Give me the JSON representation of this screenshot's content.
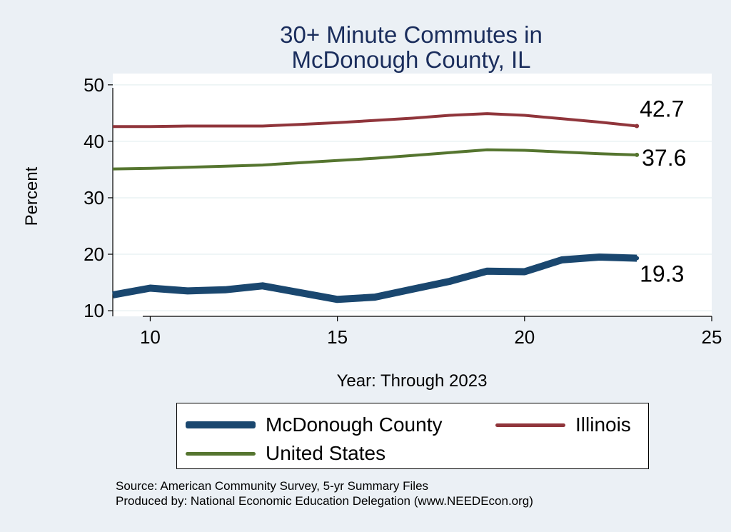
{
  "chart_data": {
    "type": "line",
    "title": [
      "30+ Minute Commutes in",
      "McDonough County, IL"
    ],
    "xlabel": "Year: Through 2023",
    "ylabel": "Percent",
    "xlim": [
      9,
      25
    ],
    "ylim": [
      9,
      52
    ],
    "xticks": [
      10,
      15,
      20,
      25
    ],
    "yticks": [
      10,
      20,
      30,
      40,
      50
    ],
    "grid": true,
    "series": [
      {
        "name": "McDonough County",
        "color": "#1a476f",
        "x": [
          9,
          10,
          11,
          12,
          13,
          14,
          15,
          16,
          17,
          18,
          19,
          20,
          21,
          22,
          23
        ],
        "values": [
          12.8,
          14.0,
          13.5,
          13.7,
          14.4,
          13.2,
          12.0,
          12.4,
          13.8,
          15.2,
          17.0,
          16.9,
          19.0,
          19.5,
          19.3
        ],
        "end_label": "19.3"
      },
      {
        "name": "Illinois",
        "color": "#90353b",
        "x": [
          9,
          10,
          11,
          12,
          13,
          14,
          15,
          16,
          17,
          18,
          19,
          20,
          21,
          22,
          23
        ],
        "values": [
          42.6,
          42.6,
          42.7,
          42.7,
          42.7,
          43.0,
          43.3,
          43.7,
          44.1,
          44.6,
          44.9,
          44.6,
          44.0,
          43.4,
          42.7
        ],
        "end_label": "42.7"
      },
      {
        "name": "United States",
        "color": "#55752f",
        "x": [
          9,
          10,
          11,
          12,
          13,
          14,
          15,
          16,
          17,
          18,
          19,
          20,
          21,
          22,
          23
        ],
        "values": [
          35.1,
          35.2,
          35.4,
          35.6,
          35.8,
          36.2,
          36.6,
          37.0,
          37.5,
          38.0,
          38.5,
          38.4,
          38.1,
          37.8,
          37.6
        ],
        "end_label": "37.6"
      }
    ],
    "legend": {
      "position": "bottom",
      "items": [
        "McDonough County",
        "Illinois",
        "United States"
      ]
    },
    "notes": [
      "Source: American Community Survey, 5-yr Summary Files",
      "Produced by: National Economic Education Delegation (www.NEEDEcon.org)"
    ]
  }
}
